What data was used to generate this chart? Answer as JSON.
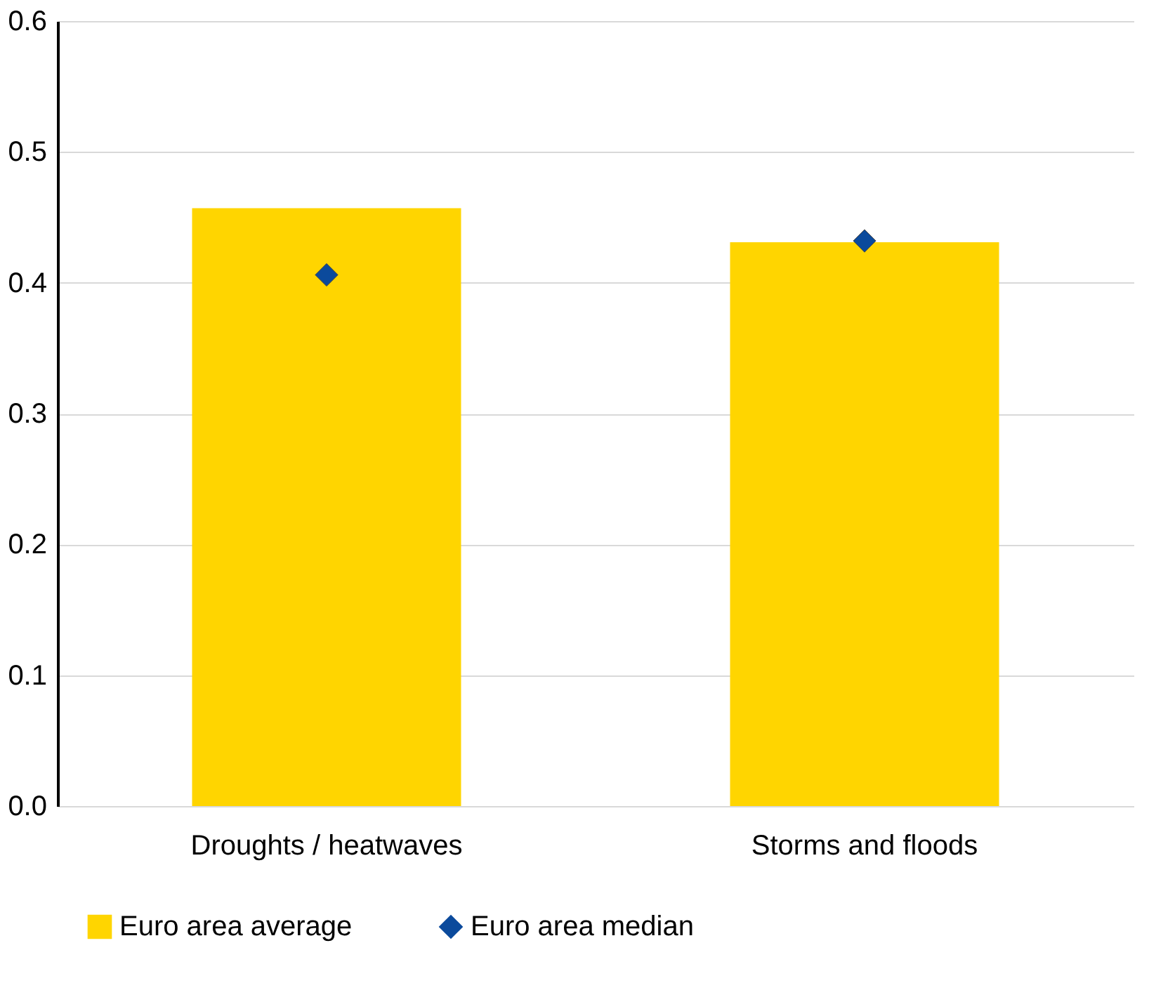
{
  "chart_data": {
    "type": "bar",
    "categories": [
      "Droughts / heatwaves",
      "Storms and floods"
    ],
    "series": [
      {
        "name": "Euro area average",
        "color": "#ffd500",
        "values": [
          0.457,
          0.431
        ]
      },
      {
        "name": "Euro area median",
        "type": "scatter",
        "marker": "diamond",
        "color": "#0b4a9c",
        "values": [
          0.406,
          0.432
        ]
      }
    ],
    "ylim": [
      0.0,
      0.6
    ],
    "yticks": [
      {
        "value": 0,
        "label": "0.0"
      },
      {
        "value": 0.1,
        "label": "0.1"
      },
      {
        "value": 0.2,
        "label": "0.2"
      },
      {
        "value": 0.3,
        "label": "0.3"
      },
      {
        "value": 0.4,
        "label": "0.4"
      },
      {
        "value": 0.5,
        "label": "0.5"
      },
      {
        "value": 0.6,
        "label": "0.6"
      }
    ],
    "grid": "y",
    "legend": "bottom"
  }
}
